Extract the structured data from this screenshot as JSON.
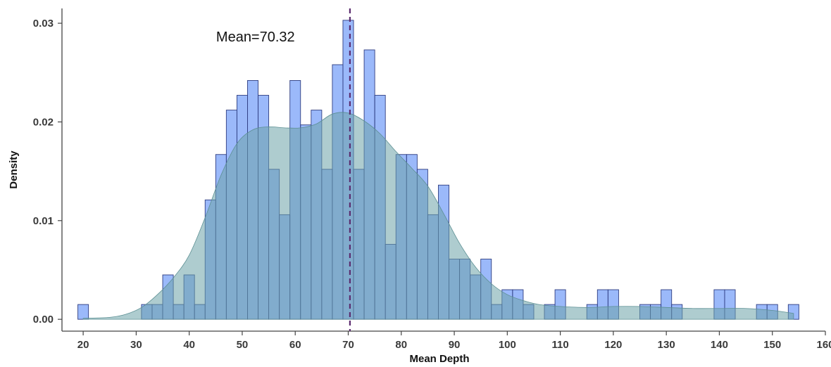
{
  "chart_data": {
    "type": "bar",
    "title": "",
    "xlabel": "Mean Depth",
    "ylabel": "Density",
    "xlim": [
      16,
      160
    ],
    "ylim": [
      -0.0012,
      0.0315
    ],
    "xticks": [
      20,
      30,
      40,
      50,
      60,
      70,
      80,
      90,
      100,
      110,
      120,
      130,
      140,
      150,
      160
    ],
    "yticks": [
      0.0,
      0.01,
      0.02,
      0.03
    ],
    "ytick_labels": [
      "0.00",
      "0.01",
      "0.02",
      "0.03"
    ],
    "grid": false,
    "bin_width": 2,
    "histogram": {
      "bin_start": [
        19,
        31,
        33,
        35,
        37,
        39,
        41,
        43,
        45,
        47,
        49,
        51,
        53,
        55,
        57,
        59,
        61,
        63,
        65,
        67,
        69,
        71,
        73,
        75,
        77,
        79,
        81,
        83,
        85,
        87,
        89,
        91,
        93,
        95,
        97,
        99,
        101,
        103,
        107,
        109,
        115,
        117,
        119,
        125,
        127,
        129,
        131,
        139,
        141,
        147,
        149,
        153
      ],
      "density": [
        0.0015,
        0.0015,
        0.0015,
        0.0045,
        0.0015,
        0.0045,
        0.0015,
        0.0121,
        0.0167,
        0.0212,
        0.0227,
        0.0242,
        0.0227,
        0.0152,
        0.0106,
        0.0242,
        0.0197,
        0.0212,
        0.0152,
        0.0258,
        0.0303,
        0.0152,
        0.0273,
        0.0227,
        0.0076,
        0.0167,
        0.0167,
        0.0152,
        0.0106,
        0.0136,
        0.0061,
        0.0061,
        0.0045,
        0.0061,
        0.0015,
        0.003,
        0.003,
        0.0015,
        0.0015,
        0.003,
        0.0015,
        0.003,
        0.003,
        0.0015,
        0.0015,
        0.003,
        0.0015,
        0.003,
        0.003,
        0.0015,
        0.0015,
        0.0015
      ]
    },
    "density_curve": {
      "x": [
        20,
        25,
        28,
        31,
        34,
        37,
        40,
        43,
        46,
        49,
        52,
        55,
        58,
        61,
        64,
        67,
        70,
        73,
        76,
        79,
        82,
        85,
        88,
        91,
        94,
        97,
        100,
        103,
        106,
        110,
        115,
        120,
        125,
        130,
        135,
        140,
        145,
        150,
        154
      ],
      "y": [
        0.0001,
        0.0002,
        0.0005,
        0.0012,
        0.0025,
        0.0042,
        0.0065,
        0.0103,
        0.0146,
        0.0178,
        0.0192,
        0.0195,
        0.0194,
        0.0194,
        0.0198,
        0.0208,
        0.0209,
        0.0201,
        0.0188,
        0.017,
        0.0153,
        0.0135,
        0.0107,
        0.0077,
        0.0053,
        0.0036,
        0.0025,
        0.0019,
        0.0015,
        0.0013,
        0.0012,
        0.0013,
        0.0013,
        0.0012,
        0.0011,
        0.0011,
        0.0011,
        0.0009,
        0.0006
      ]
    },
    "mean_line": {
      "x": 70.32,
      "label": "Mean=70.32"
    },
    "colors": {
      "bar_fill": "#5e8ef7",
      "bar_stroke": "#2f3d80",
      "curve_fill": "#6ba3a8",
      "mean_line": "#5b2c6f",
      "axis": "#444444"
    }
  }
}
